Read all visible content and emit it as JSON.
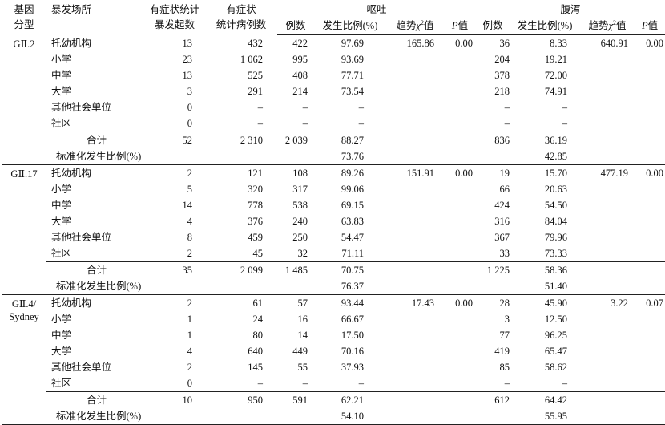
{
  "headers": {
    "genotype_l1": "基因",
    "genotype_l2": "分型",
    "venue": "暴发场所",
    "outbreaks_l1": "有症状统计",
    "outbreaks_l2": "暴发起数",
    "cases_l1": "有症状",
    "cases_l2": "统计病例数",
    "vomit": "呕吐",
    "diarrhea": "腹泻",
    "count": "例数",
    "ratio": "发生比例(%)",
    "trend": "趋势χ²值",
    "p": "P值"
  },
  "groups": [
    {
      "genotype": [
        "GⅡ.2"
      ],
      "rows": [
        {
          "venue": "托幼机构",
          "outbreaks": "13",
          "cases": "432",
          "v_n": "422",
          "v_pct": "97.69",
          "v_chi": "165.86",
          "v_p": "0.00",
          "d_n": "36",
          "d_pct": "8.33",
          "d_chi": "640.91",
          "d_p": "0.00"
        },
        {
          "venue": "小学",
          "outbreaks": "23",
          "cases": "1 062",
          "v_n": "995",
          "v_pct": "93.69",
          "v_chi": "",
          "v_p": "",
          "d_n": "204",
          "d_pct": "19.21",
          "d_chi": "",
          "d_p": ""
        },
        {
          "venue": "中学",
          "outbreaks": "13",
          "cases": "525",
          "v_n": "408",
          "v_pct": "77.71",
          "v_chi": "",
          "v_p": "",
          "d_n": "378",
          "d_pct": "72.00",
          "d_chi": "",
          "d_p": ""
        },
        {
          "venue": "大学",
          "outbreaks": "3",
          "cases": "291",
          "v_n": "214",
          "v_pct": "73.54",
          "v_chi": "",
          "v_p": "",
          "d_n": "218",
          "d_pct": "74.91",
          "d_chi": "",
          "d_p": ""
        },
        {
          "venue": "其他社会单位",
          "outbreaks": "0",
          "cases": "–",
          "v_n": "–",
          "v_pct": "–",
          "v_chi": "",
          "v_p": "",
          "d_n": "–",
          "d_pct": "–",
          "d_chi": "",
          "d_p": ""
        },
        {
          "venue": "社区",
          "outbreaks": "0",
          "cases": "–",
          "v_n": "–",
          "v_pct": "–",
          "v_chi": "",
          "v_p": "",
          "d_n": "–",
          "d_pct": "–",
          "d_chi": "",
          "d_p": ""
        }
      ],
      "total": {
        "label": "合计",
        "outbreaks": "52",
        "cases": "2 310",
        "v_n": "2 039",
        "v_pct": "88.27",
        "d_n": "836",
        "d_pct": "36.19"
      },
      "std": {
        "label": "标准化发生比例(%)",
        "v_pct": "73.76",
        "d_pct": "42.85"
      }
    },
    {
      "genotype": [
        "GⅡ.17"
      ],
      "rows": [
        {
          "venue": "托幼机构",
          "outbreaks": "2",
          "cases": "121",
          "v_n": "108",
          "v_pct": "89.26",
          "v_chi": "151.91",
          "v_p": "0.00",
          "d_n": "19",
          "d_pct": "15.70",
          "d_chi": "477.19",
          "d_p": "0.00"
        },
        {
          "venue": "小学",
          "outbreaks": "5",
          "cases": "320",
          "v_n": "317",
          "v_pct": "99.06",
          "v_chi": "",
          "v_p": "",
          "d_n": "66",
          "d_pct": "20.63",
          "d_chi": "",
          "d_p": ""
        },
        {
          "venue": "中学",
          "outbreaks": "14",
          "cases": "778",
          "v_n": "538",
          "v_pct": "69.15",
          "v_chi": "",
          "v_p": "",
          "d_n": "424",
          "d_pct": "54.50",
          "d_chi": "",
          "d_p": ""
        },
        {
          "venue": "大学",
          "outbreaks": "4",
          "cases": "376",
          "v_n": "240",
          "v_pct": "63.83",
          "v_chi": "",
          "v_p": "",
          "d_n": "316",
          "d_pct": "84.04",
          "d_chi": "",
          "d_p": ""
        },
        {
          "venue": "其他社会单位",
          "outbreaks": "8",
          "cases": "459",
          "v_n": "250",
          "v_pct": "54.47",
          "v_chi": "",
          "v_p": "",
          "d_n": "367",
          "d_pct": "79.96",
          "d_chi": "",
          "d_p": ""
        },
        {
          "venue": "社区",
          "outbreaks": "2",
          "cases": "45",
          "v_n": "32",
          "v_pct": "71.11",
          "v_chi": "",
          "v_p": "",
          "d_n": "33",
          "d_pct": "73.33",
          "d_chi": "",
          "d_p": ""
        }
      ],
      "total": {
        "label": "合计",
        "outbreaks": "35",
        "cases": "2 099",
        "v_n": "1 485",
        "v_pct": "70.75",
        "d_n": "1 225",
        "d_pct": "58.36"
      },
      "std": {
        "label": "标准化发生比例(%)",
        "v_pct": "76.37",
        "d_pct": "51.40"
      }
    },
    {
      "genotype": [
        "GⅡ.4/",
        "Sydney"
      ],
      "rows": [
        {
          "venue": "托幼机构",
          "outbreaks": "2",
          "cases": "61",
          "v_n": "57",
          "v_pct": "93.44",
          "v_chi": "17.43",
          "v_p": "0.00",
          "d_n": "28",
          "d_pct": "45.90",
          "d_chi": "3.22",
          "d_p": "0.07"
        },
        {
          "venue": "小学",
          "outbreaks": "1",
          "cases": "24",
          "v_n": "16",
          "v_pct": "66.67",
          "v_chi": "",
          "v_p": "",
          "d_n": "3",
          "d_pct": "12.50",
          "d_chi": "",
          "d_p": ""
        },
        {
          "venue": "中学",
          "outbreaks": "1",
          "cases": "80",
          "v_n": "14",
          "v_pct": "17.50",
          "v_chi": "",
          "v_p": "",
          "d_n": "77",
          "d_pct": "96.25",
          "d_chi": "",
          "d_p": ""
        },
        {
          "venue": "大学",
          "outbreaks": "4",
          "cases": "640",
          "v_n": "449",
          "v_pct": "70.16",
          "v_chi": "",
          "v_p": "",
          "d_n": "419",
          "d_pct": "65.47",
          "d_chi": "",
          "d_p": ""
        },
        {
          "venue": "其他社会单位",
          "outbreaks": "2",
          "cases": "145",
          "v_n": "55",
          "v_pct": "37.93",
          "v_chi": "",
          "v_p": "",
          "d_n": "85",
          "d_pct": "58.62",
          "d_chi": "",
          "d_p": ""
        },
        {
          "venue": "社区",
          "outbreaks": "0",
          "cases": "–",
          "v_n": "–",
          "v_pct": "–",
          "v_chi": "",
          "v_p": "",
          "d_n": "–",
          "d_pct": "–",
          "d_chi": "",
          "d_p": ""
        }
      ],
      "total": {
        "label": "合计",
        "outbreaks": "10",
        "cases": "950",
        "v_n": "591",
        "v_pct": "62.21",
        "d_n": "612",
        "d_pct": "64.42"
      },
      "std": {
        "label": "标准化发生比例(%)",
        "v_pct": "54.10",
        "d_pct": "55.95"
      }
    }
  ]
}
